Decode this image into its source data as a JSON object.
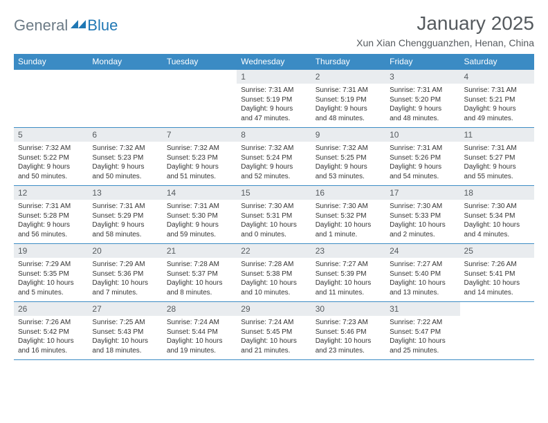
{
  "logo": {
    "text1": "General",
    "text2": "Blue"
  },
  "title": "January 2025",
  "location": "Xun Xian Chengguanzhen, Henan, China",
  "colors": {
    "header_bg": "#3b8bc4",
    "header_text": "#ffffff",
    "daynum_bg": "#e9ecef",
    "body_text": "#333333",
    "title_text": "#555a5e",
    "rule": "#3b8bc4",
    "logo_gray": "#6b7a85",
    "logo_blue": "#1f77b4",
    "page_bg": "#ffffff"
  },
  "typography": {
    "title_fontsize": 28,
    "location_fontsize": 14,
    "header_fontsize": 12,
    "daynum_fontsize": 12,
    "cell_fontsize": 10,
    "font_family": "Arial"
  },
  "weekdays": [
    "Sunday",
    "Monday",
    "Tuesday",
    "Wednesday",
    "Thursday",
    "Friday",
    "Saturday"
  ],
  "weeks": [
    [
      null,
      null,
      null,
      {
        "n": "1",
        "sr": "7:31 AM",
        "ss": "5:19 PM",
        "dl": "9 hours and 47 minutes."
      },
      {
        "n": "2",
        "sr": "7:31 AM",
        "ss": "5:19 PM",
        "dl": "9 hours and 48 minutes."
      },
      {
        "n": "3",
        "sr": "7:31 AM",
        "ss": "5:20 PM",
        "dl": "9 hours and 48 minutes."
      },
      {
        "n": "4",
        "sr": "7:31 AM",
        "ss": "5:21 PM",
        "dl": "9 hours and 49 minutes."
      }
    ],
    [
      {
        "n": "5",
        "sr": "7:32 AM",
        "ss": "5:22 PM",
        "dl": "9 hours and 50 minutes."
      },
      {
        "n": "6",
        "sr": "7:32 AM",
        "ss": "5:23 PM",
        "dl": "9 hours and 50 minutes."
      },
      {
        "n": "7",
        "sr": "7:32 AM",
        "ss": "5:23 PM",
        "dl": "9 hours and 51 minutes."
      },
      {
        "n": "8",
        "sr": "7:32 AM",
        "ss": "5:24 PM",
        "dl": "9 hours and 52 minutes."
      },
      {
        "n": "9",
        "sr": "7:32 AM",
        "ss": "5:25 PM",
        "dl": "9 hours and 53 minutes."
      },
      {
        "n": "10",
        "sr": "7:31 AM",
        "ss": "5:26 PM",
        "dl": "9 hours and 54 minutes."
      },
      {
        "n": "11",
        "sr": "7:31 AM",
        "ss": "5:27 PM",
        "dl": "9 hours and 55 minutes."
      }
    ],
    [
      {
        "n": "12",
        "sr": "7:31 AM",
        "ss": "5:28 PM",
        "dl": "9 hours and 56 minutes."
      },
      {
        "n": "13",
        "sr": "7:31 AM",
        "ss": "5:29 PM",
        "dl": "9 hours and 58 minutes."
      },
      {
        "n": "14",
        "sr": "7:31 AM",
        "ss": "5:30 PM",
        "dl": "9 hours and 59 minutes."
      },
      {
        "n": "15",
        "sr": "7:30 AM",
        "ss": "5:31 PM",
        "dl": "10 hours and 0 minutes."
      },
      {
        "n": "16",
        "sr": "7:30 AM",
        "ss": "5:32 PM",
        "dl": "10 hours and 1 minute."
      },
      {
        "n": "17",
        "sr": "7:30 AM",
        "ss": "5:33 PM",
        "dl": "10 hours and 2 minutes."
      },
      {
        "n": "18",
        "sr": "7:30 AM",
        "ss": "5:34 PM",
        "dl": "10 hours and 4 minutes."
      }
    ],
    [
      {
        "n": "19",
        "sr": "7:29 AM",
        "ss": "5:35 PM",
        "dl": "10 hours and 5 minutes."
      },
      {
        "n": "20",
        "sr": "7:29 AM",
        "ss": "5:36 PM",
        "dl": "10 hours and 7 minutes."
      },
      {
        "n": "21",
        "sr": "7:28 AM",
        "ss": "5:37 PM",
        "dl": "10 hours and 8 minutes."
      },
      {
        "n": "22",
        "sr": "7:28 AM",
        "ss": "5:38 PM",
        "dl": "10 hours and 10 minutes."
      },
      {
        "n": "23",
        "sr": "7:27 AM",
        "ss": "5:39 PM",
        "dl": "10 hours and 11 minutes."
      },
      {
        "n": "24",
        "sr": "7:27 AM",
        "ss": "5:40 PM",
        "dl": "10 hours and 13 minutes."
      },
      {
        "n": "25",
        "sr": "7:26 AM",
        "ss": "5:41 PM",
        "dl": "10 hours and 14 minutes."
      }
    ],
    [
      {
        "n": "26",
        "sr": "7:26 AM",
        "ss": "5:42 PM",
        "dl": "10 hours and 16 minutes."
      },
      {
        "n": "27",
        "sr": "7:25 AM",
        "ss": "5:43 PM",
        "dl": "10 hours and 18 minutes."
      },
      {
        "n": "28",
        "sr": "7:24 AM",
        "ss": "5:44 PM",
        "dl": "10 hours and 19 minutes."
      },
      {
        "n": "29",
        "sr": "7:24 AM",
        "ss": "5:45 PM",
        "dl": "10 hours and 21 minutes."
      },
      {
        "n": "30",
        "sr": "7:23 AM",
        "ss": "5:46 PM",
        "dl": "10 hours and 23 minutes."
      },
      {
        "n": "31",
        "sr": "7:22 AM",
        "ss": "5:47 PM",
        "dl": "10 hours and 25 minutes."
      },
      null
    ]
  ],
  "labels": {
    "sunrise": "Sunrise:",
    "sunset": "Sunset:",
    "daylight": "Daylight:"
  }
}
